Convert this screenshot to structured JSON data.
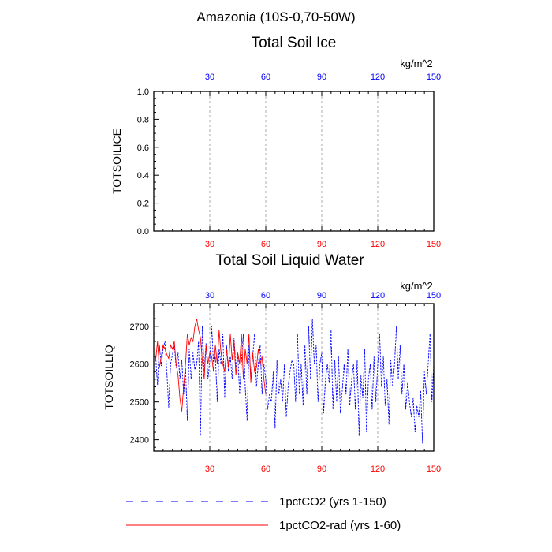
{
  "page": {
    "title": "Amazonia (10S-0,70-50W)"
  },
  "colors": {
    "axis": "#000000",
    "grid": "#999999",
    "top_tick_label": "#0000ff",
    "bottom_tick_label": "#ff0000",
    "series_1pctCO2": "#0000ff",
    "series_rad": "#ff0000"
  },
  "legend": {
    "placement": "bottom",
    "items": [
      {
        "label": "1pctCO2 (yrs 1-150)",
        "color": "#0000ff",
        "style": "dashed"
      },
      {
        "label": "1pctCO2-rad (yrs 1-60)",
        "color": "#ff0000",
        "style": "solid"
      }
    ]
  },
  "chart_data": [
    {
      "type": "line",
      "title": "Total Soil Ice",
      "units": "kg/m^2",
      "ylabel": "TOTSOILICE",
      "xlim": [
        0,
        150
      ],
      "ylim": [
        0,
        1
      ],
      "x_ticks": [
        30,
        60,
        90,
        120,
        150
      ],
      "x_tick_labels_top": [
        "30",
        "60",
        "90",
        "120",
        "150"
      ],
      "x_tick_labels_bottom": [
        "30",
        "60",
        "90",
        "120",
        "150"
      ],
      "y_ticks": [
        0,
        0.2,
        0.4,
        0.6,
        0.8,
        1.0
      ],
      "y_tick_labels": [
        "0.0",
        "0.2",
        "0.4",
        "0.6",
        "0.8",
        "1.0"
      ],
      "grid": "vertical dashed",
      "series": []
    },
    {
      "type": "line",
      "title": "Total Soil Liquid Water",
      "units": "kg/m^2",
      "ylabel": "TOTSOILLIQ",
      "xlim": [
        0,
        150
      ],
      "ylim": [
        2370,
        2760
      ],
      "x_ticks": [
        30,
        60,
        90,
        120,
        150
      ],
      "x_tick_labels_top": [
        "30",
        "60",
        "90",
        "120",
        "150"
      ],
      "x_tick_labels_bottom": [
        "30",
        "60",
        "90",
        "120",
        "150"
      ],
      "y_ticks": [
        2400,
        2500,
        2600,
        2700
      ],
      "y_tick_labels": [
        "2400",
        "2500",
        "2600",
        "2700"
      ],
      "grid": "vertical dashed",
      "series": [
        {
          "name": "1pctCO2 (yrs 1-150)",
          "color": "#0000ff",
          "style": "dashed",
          "x_start": 1,
          "values": [
            2620,
            2545,
            2650,
            2595,
            2640,
            2660,
            2580,
            2485,
            2600,
            2625,
            2650,
            2590,
            2630,
            2560,
            2610,
            2520,
            2590,
            2450,
            2640,
            2560,
            2630,
            2585,
            2600,
            2660,
            2410,
            2700,
            2580,
            2655,
            2560,
            2610,
            2700,
            2600,
            2620,
            2500,
            2640,
            2600,
            2680,
            2510,
            2650,
            2580,
            2620,
            2560,
            2670,
            2590,
            2630,
            2520,
            2610,
            2680,
            2540,
            2450,
            2650,
            2560,
            2620,
            2680,
            2540,
            2600,
            2650,
            2520,
            2600,
            2560,
            2480,
            2520,
            2500,
            2580,
            2430,
            2610,
            2520,
            2560,
            2500,
            2600,
            2460,
            2540,
            2580,
            2610,
            2600,
            2500,
            2680,
            2520,
            2600,
            2490,
            2650,
            2520,
            2700,
            2560,
            2720,
            2600,
            2650,
            2500,
            2600,
            2630,
            2470,
            2560,
            2600,
            2550,
            2690,
            2480,
            2610,
            2500,
            2620,
            2470,
            2530,
            2600,
            2520,
            2640,
            2490,
            2560,
            2600,
            2480,
            2610,
            2410,
            2570,
            2510,
            2640,
            2420,
            2560,
            2600,
            2480,
            2620,
            2500,
            2600,
            2680,
            2540,
            2620,
            2490,
            2560,
            2440,
            2610,
            2540,
            2600,
            2700,
            2560,
            2650,
            2520,
            2600,
            2480,
            2550,
            2500,
            2460,
            2510,
            2420,
            2490,
            2460,
            2530,
            2390,
            2580,
            2520,
            2600,
            2680,
            2500,
            2600
          ]
        },
        {
          "name": "1pctCO2-rad (yrs 1-60)",
          "color": "#ff0000",
          "style": "solid",
          "x_start": 1,
          "values": [
            2610,
            2660,
            2590,
            2620,
            2650,
            2640,
            2625,
            2615,
            2650,
            2640,
            2660,
            2600,
            2570,
            2510,
            2475,
            2540,
            2600,
            2680,
            2650,
            2670,
            2660,
            2700,
            2720,
            2690,
            2670,
            2610,
            2560,
            2650,
            2600,
            2630,
            2620,
            2580,
            2650,
            2600,
            2690,
            2630,
            2600,
            2580,
            2640,
            2590,
            2680,
            2610,
            2660,
            2570,
            2630,
            2600,
            2680,
            2560,
            2640,
            2600,
            2680,
            2550,
            2630,
            2580,
            2590,
            2640,
            2600,
            2620,
            2560,
            2520
          ]
        }
      ]
    }
  ]
}
